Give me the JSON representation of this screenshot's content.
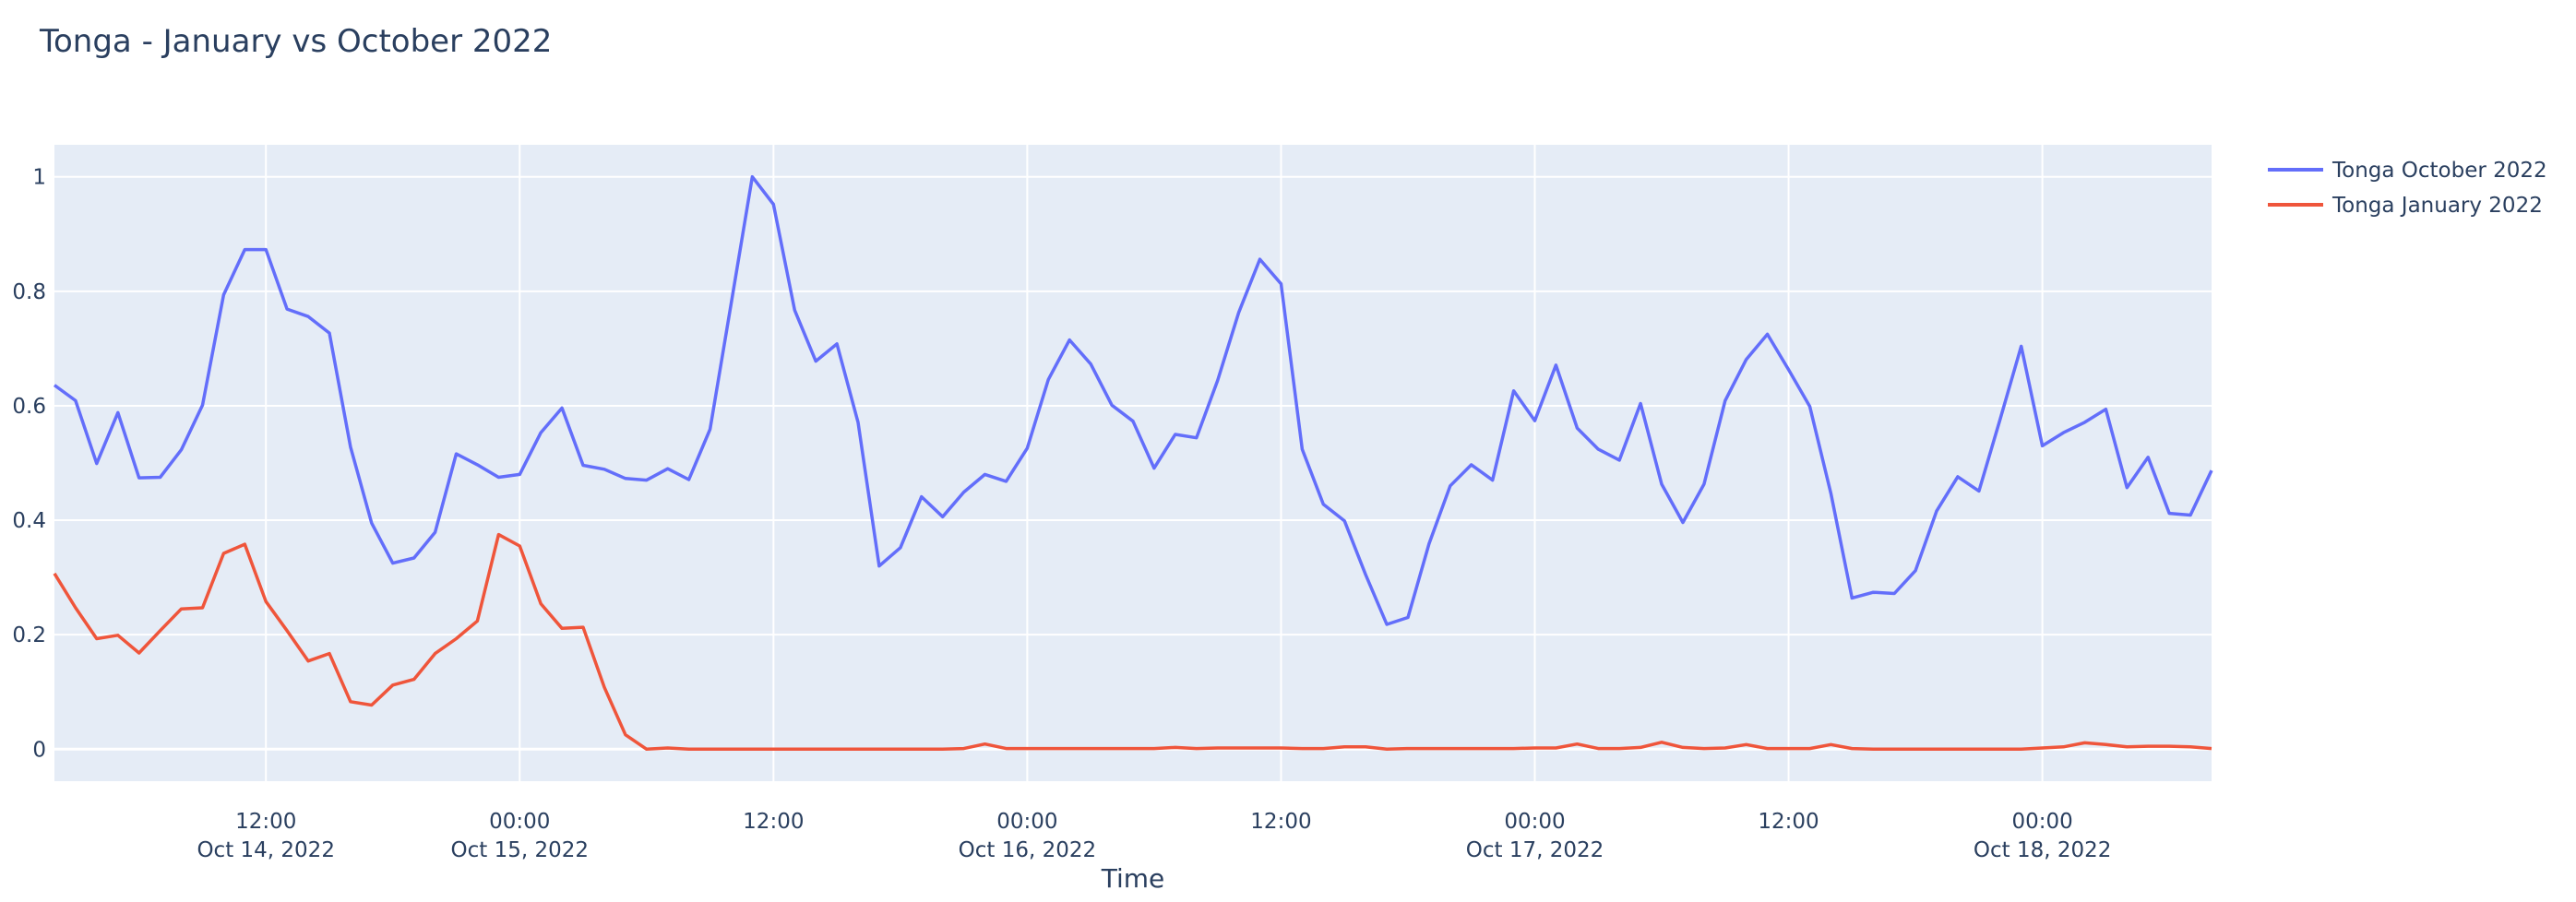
{
  "chart_data": {
    "type": "line",
    "title": "Tonga - January vs October 2022",
    "xlabel": "Time",
    "ylabel": "",
    "xlim": [
      "2022-10-14 02:00",
      "2022-10-18 08:00"
    ],
    "ylim": [
      -0.056,
      1.056
    ],
    "grid": true,
    "legend_position": "top-right",
    "colors": {
      "plot_bg": "#e5ecf6",
      "grid": "#ffffff",
      "text": "#2a3f5f"
    },
    "y_ticks": [
      {
        "value": 0,
        "label": "0"
      },
      {
        "value": 0.2,
        "label": "0.2"
      },
      {
        "value": 0.4,
        "label": "0.4"
      },
      {
        "value": 0.6,
        "label": "0.6"
      },
      {
        "value": 0.8,
        "label": "0.8"
      },
      {
        "value": 1,
        "label": "1"
      }
    ],
    "x_ticks": [
      {
        "value": "2022-10-14 12:00",
        "label": "12:00",
        "sublabel": "Oct 14, 2022"
      },
      {
        "value": "2022-10-15 00:00",
        "label": "00:00",
        "sublabel": "Oct 15, 2022"
      },
      {
        "value": "2022-10-15 12:00",
        "label": "12:00",
        "sublabel": ""
      },
      {
        "value": "2022-10-16 00:00",
        "label": "00:00",
        "sublabel": "Oct 16, 2022"
      },
      {
        "value": "2022-10-16 12:00",
        "label": "12:00",
        "sublabel": ""
      },
      {
        "value": "2022-10-17 00:00",
        "label": "00:00",
        "sublabel": "Oct 17, 2022"
      },
      {
        "value": "2022-10-17 12:00",
        "label": "12:00",
        "sublabel": ""
      },
      {
        "value": "2022-10-18 00:00",
        "label": "00:00",
        "sublabel": "Oct 18, 2022"
      }
    ],
    "x": [
      "2022-10-14 02:00",
      "2022-10-14 03:00",
      "2022-10-14 04:00",
      "2022-10-14 05:00",
      "2022-10-14 06:00",
      "2022-10-14 07:00",
      "2022-10-14 08:00",
      "2022-10-14 09:00",
      "2022-10-14 10:00",
      "2022-10-14 11:00",
      "2022-10-14 12:00",
      "2022-10-14 13:00",
      "2022-10-14 14:00",
      "2022-10-14 15:00",
      "2022-10-14 16:00",
      "2022-10-14 17:00",
      "2022-10-14 18:00",
      "2022-10-14 19:00",
      "2022-10-14 20:00",
      "2022-10-14 21:00",
      "2022-10-14 22:00",
      "2022-10-14 23:00",
      "2022-10-15 00:00",
      "2022-10-15 01:00",
      "2022-10-15 02:00",
      "2022-10-15 03:00",
      "2022-10-15 04:00",
      "2022-10-15 05:00",
      "2022-10-15 06:00",
      "2022-10-15 07:00",
      "2022-10-15 08:00",
      "2022-10-15 09:00",
      "2022-10-15 10:00",
      "2022-10-15 11:00",
      "2022-10-15 12:00",
      "2022-10-15 13:00",
      "2022-10-15 14:00",
      "2022-10-15 15:00",
      "2022-10-15 16:00",
      "2022-10-15 17:00",
      "2022-10-15 18:00",
      "2022-10-15 19:00",
      "2022-10-15 20:00",
      "2022-10-15 21:00",
      "2022-10-15 22:00",
      "2022-10-15 23:00",
      "2022-10-16 00:00",
      "2022-10-16 01:00",
      "2022-10-16 02:00",
      "2022-10-16 03:00",
      "2022-10-16 04:00",
      "2022-10-16 05:00",
      "2022-10-16 06:00",
      "2022-10-16 07:00",
      "2022-10-16 08:00",
      "2022-10-16 09:00",
      "2022-10-16 10:00",
      "2022-10-16 11:00",
      "2022-10-16 12:00",
      "2022-10-16 13:00",
      "2022-10-16 14:00",
      "2022-10-16 15:00",
      "2022-10-16 16:00",
      "2022-10-16 17:00",
      "2022-10-16 18:00",
      "2022-10-16 19:00",
      "2022-10-16 20:00",
      "2022-10-16 21:00",
      "2022-10-16 22:00",
      "2022-10-16 23:00",
      "2022-10-17 00:00",
      "2022-10-17 01:00",
      "2022-10-17 02:00",
      "2022-10-17 03:00",
      "2022-10-17 04:00",
      "2022-10-17 05:00",
      "2022-10-17 06:00",
      "2022-10-17 07:00",
      "2022-10-17 08:00",
      "2022-10-17 09:00",
      "2022-10-17 10:00",
      "2022-10-17 11:00",
      "2022-10-17 12:00",
      "2022-10-17 13:00",
      "2022-10-17 14:00",
      "2022-10-17 15:00",
      "2022-10-17 16:00",
      "2022-10-17 17:00",
      "2022-10-17 18:00",
      "2022-10-17 19:00",
      "2022-10-17 20:00",
      "2022-10-17 21:00",
      "2022-10-17 22:00",
      "2022-10-17 23:00",
      "2022-10-18 00:00",
      "2022-10-18 01:00",
      "2022-10-18 02:00",
      "2022-10-18 03:00",
      "2022-10-18 04:00",
      "2022-10-18 05:00",
      "2022-10-18 06:00",
      "2022-10-18 07:00",
      "2022-10-18 08:00"
    ],
    "series": [
      {
        "name": "Tonga October 2022",
        "color": "#636efa",
        "values": [
          0.636,
          0.609,
          0.499,
          0.588,
          0.474,
          0.475,
          0.523,
          0.601,
          0.794,
          0.873,
          0.873,
          0.769,
          0.756,
          0.727,
          0.528,
          0.395,
          0.325,
          0.334,
          0.379,
          0.516,
          0.497,
          0.475,
          0.48,
          0.553,
          0.596,
          0.496,
          0.489,
          0.473,
          0.47,
          0.49,
          0.471,
          0.559,
          0.779,
          1.0,
          0.952,
          0.767,
          0.678,
          0.708,
          0.571,
          0.32,
          0.352,
          0.441,
          0.406,
          0.449,
          0.48,
          0.468,
          0.526,
          0.646,
          0.715,
          0.673,
          0.601,
          0.573,
          0.491,
          0.55,
          0.544,
          0.644,
          0.763,
          0.856,
          0.813,
          0.524,
          0.428,
          0.399,
          0.305,
          0.218,
          0.23,
          0.359,
          0.46,
          0.497,
          0.47,
          0.626,
          0.574,
          0.671,
          0.561,
          0.524,
          0.505,
          0.604,
          0.463,
          0.396,
          0.463,
          0.609,
          0.681,
          0.725,
          0.663,
          0.599,
          0.447,
          0.264,
          0.274,
          0.272,
          0.312,
          0.416,
          0.476,
          0.451,
          0.576,
          0.704,
          0.53,
          0.553,
          0.571,
          0.594,
          0.457,
          0.51,
          0.412,
          0.409,
          0.487
        ]
      },
      {
        "name": "Tonga January 2022",
        "color": "#ef553b",
        "values": [
          0.307,
          0.247,
          0.193,
          0.199,
          0.168,
          0.207,
          0.245,
          0.247,
          0.342,
          0.358,
          0.258,
          0.207,
          0.154,
          0.167,
          0.083,
          0.077,
          0.112,
          0.122,
          0.167,
          0.193,
          0.224,
          0.375,
          0.355,
          0.254,
          0.211,
          0.213,
          0.108,
          0.025,
          0,
          0.002,
          0,
          0,
          0,
          0,
          0,
          0,
          0,
          0,
          0,
          0,
          0,
          0,
          0,
          0.001,
          0.009,
          0.001,
          0.001,
          0.001,
          0.001,
          0.001,
          0.001,
          0.001,
          0.001,
          0.003,
          0.001,
          0.002,
          0.002,
          0.002,
          0.002,
          0.001,
          0.001,
          0.004,
          0.004,
          0,
          0.001,
          0.001,
          0.001,
          0.001,
          0.001,
          0.001,
          0.002,
          0.002,
          0.009,
          0.001,
          0.001,
          0.003,
          0.012,
          0.003,
          0.001,
          0.002,
          0.008,
          0.001,
          0.001,
          0.001,
          0.008,
          0.001,
          0,
          0,
          0,
          0,
          0,
          0,
          0,
          0,
          0.002,
          0.004,
          0.011,
          0.008,
          0.004,
          0.005,
          0.005,
          0.004,
          0.001
        ]
      }
    ]
  }
}
